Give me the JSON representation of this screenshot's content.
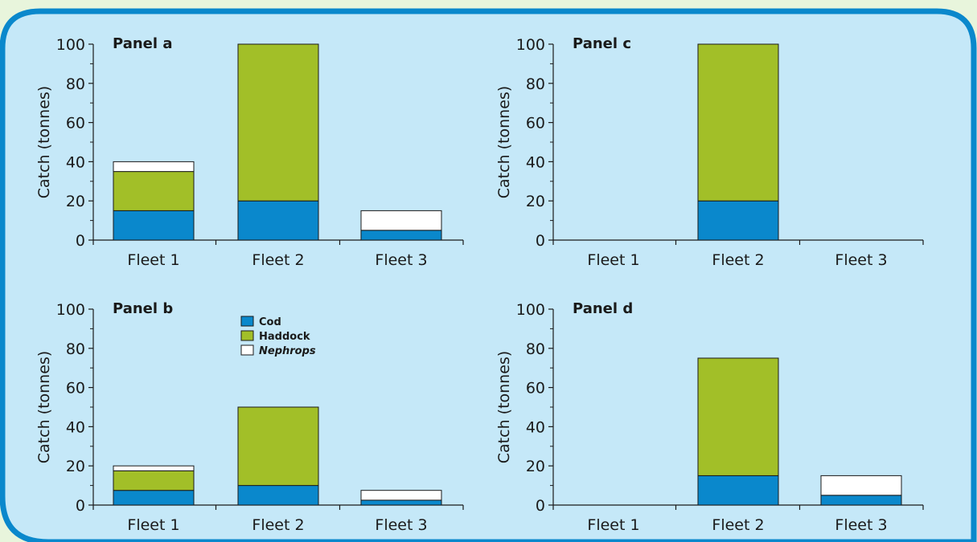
{
  "colors": {
    "Cod": "#0a88cc",
    "Haddock": "#a2bf28",
    "Nephrops": "#ffffff",
    "panel_bg": "#c5e8f8",
    "frame": "#0a88cc",
    "outer_bg": "#e8f5dc"
  },
  "legend": {
    "entries": [
      {
        "name": "Cod",
        "italic": false
      },
      {
        "name": "Haddock",
        "italic": false
      },
      {
        "name": "Nephrops",
        "italic": true
      }
    ]
  },
  "chart_data": [
    {
      "type": "bar",
      "stacked": true,
      "title": "Panel a",
      "ylabel": "Catch (tonnes)",
      "ylim": [
        0,
        100
      ],
      "yticks": [
        0,
        20,
        40,
        60,
        80,
        100
      ],
      "categories": [
        "Fleet 1",
        "Fleet 2",
        "Fleet 3"
      ],
      "series": [
        {
          "name": "Cod",
          "values": [
            15,
            20,
            5
          ]
        },
        {
          "name": "Haddock",
          "values": [
            20,
            80,
            0
          ]
        },
        {
          "name": "Nephrops",
          "values": [
            5,
            0,
            10
          ]
        }
      ]
    },
    {
      "type": "bar",
      "stacked": true,
      "title": "Panel c",
      "ylabel": "Catch (tonnes)",
      "ylim": [
        0,
        100
      ],
      "yticks": [
        0,
        20,
        40,
        60,
        80,
        100
      ],
      "categories": [
        "Fleet 1",
        "Fleet 2",
        "Fleet 3"
      ],
      "series": [
        {
          "name": "Cod",
          "values": [
            0,
            20,
            0
          ]
        },
        {
          "name": "Haddock",
          "values": [
            0,
            80,
            0
          ]
        },
        {
          "name": "Nephrops",
          "values": [
            0,
            0,
            0
          ]
        }
      ]
    },
    {
      "type": "bar",
      "stacked": true,
      "title": "Panel b",
      "ylabel": "Catch (tonnes)",
      "ylim": [
        0,
        100
      ],
      "yticks": [
        0,
        20,
        40,
        60,
        80,
        100
      ],
      "categories": [
        "Fleet 1",
        "Fleet 2",
        "Fleet 3"
      ],
      "series": [
        {
          "name": "Cod",
          "values": [
            7.5,
            10,
            2.5
          ]
        },
        {
          "name": "Haddock",
          "values": [
            10,
            40,
            0
          ]
        },
        {
          "name": "Nephrops",
          "values": [
            2.5,
            0,
            5
          ]
        }
      ]
    },
    {
      "type": "bar",
      "stacked": true,
      "title": "Panel d",
      "ylabel": "Catch (tonnes)",
      "ylim": [
        0,
        100
      ],
      "yticks": [
        0,
        20,
        40,
        60,
        80,
        100
      ],
      "categories": [
        "Fleet 1",
        "Fleet 2",
        "Fleet 3"
      ],
      "series": [
        {
          "name": "Cod",
          "values": [
            0,
            15,
            5
          ]
        },
        {
          "name": "Haddock",
          "values": [
            0,
            60,
            0
          ]
        },
        {
          "name": "Nephrops",
          "values": [
            0,
            0,
            10
          ]
        }
      ]
    }
  ]
}
